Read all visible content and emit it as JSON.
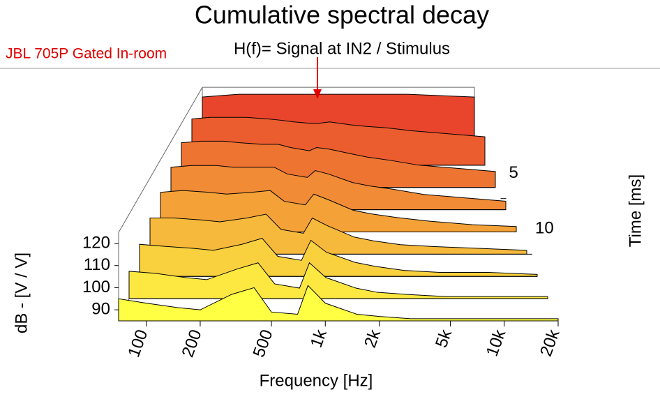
{
  "chart_data": {
    "type": "waterfall",
    "title": "Cumulative spectral decay",
    "subtitle": "H(f)= Signal at IN2 / Stimulus",
    "annotation": "JBL 705P Gated In-room",
    "x_label": "Frequency [Hz]",
    "y_label": "dB - [V / V]",
    "z_label": "Time [ms]",
    "x_log": true,
    "xlim": [
      70,
      20000
    ],
    "xticks": [
      100,
      200,
      500,
      {
        "value": 1000,
        "label": "1k"
      },
      {
        "value": 2000,
        "label": "2k"
      },
      {
        "value": 5000,
        "label": "5k"
      },
      {
        "value": 10000,
        "label": "10k"
      },
      {
        "value": 20000,
        "label": "20k"
      }
    ],
    "ylim": [
      85,
      125
    ],
    "yticks": [
      90,
      100,
      110,
      120
    ],
    "zlim": [
      0,
      16
    ],
    "zticks": [
      5,
      10
    ],
    "colors": [
      "#e8452c",
      "#ffff44"
    ],
    "x": [
      70,
      100,
      150,
      200,
      300,
      400,
      500,
      700,
      800,
      1000,
      1500,
      2000,
      3000,
      5000,
      10000,
      20000
    ],
    "slices": [
      {
        "time": 0,
        "values": [
          118,
          119,
          120,
          120,
          120,
          120,
          120,
          120,
          120,
          120,
          120,
          120,
          120,
          120,
          119,
          118
        ]
      },
      {
        "time": 2,
        "values": [
          116,
          117,
          117,
          117,
          116,
          115,
          114,
          113,
          113,
          114,
          112,
          111,
          110,
          108,
          106,
          104
        ]
      },
      {
        "time": 4,
        "values": [
          113,
          114,
          114,
          113,
          112,
          112,
          110,
          108,
          110,
          109,
          106,
          104,
          102,
          99,
          97,
          95
        ]
      },
      {
        "time": 6,
        "values": [
          110,
          111,
          111,
          110,
          110,
          110,
          106,
          104,
          108,
          106,
          101,
          99,
          97,
          94,
          92,
          90
        ]
      },
      {
        "time": 8,
        "values": [
          107,
          108,
          107,
          106,
          107,
          108,
          102,
          100,
          106,
          103,
          97,
          95,
          93,
          91,
          89,
          88
        ]
      },
      {
        "time": 10,
        "values": [
          104,
          104,
          103,
          102,
          104,
          106,
          98,
          96,
          104,
          100,
          94,
          92,
          90,
          89,
          88,
          87
        ]
      },
      {
        "time": 12,
        "values": [
          101,
          100,
          99,
          98,
          101,
          104,
          95,
          93,
          103,
          97,
          92,
          90,
          88,
          87,
          87,
          86
        ]
      },
      {
        "time": 14,
        "values": [
          98,
          97,
          95,
          94,
          99,
          102,
          92,
          90,
          102,
          95,
          90,
          88,
          87,
          86,
          86,
          86
        ]
      },
      {
        "time": 16,
        "values": [
          95,
          93,
          91,
          90,
          97,
          100,
          89,
          88,
          101,
          93,
          88,
          87,
          86,
          86,
          86,
          86
        ]
      }
    ]
  }
}
